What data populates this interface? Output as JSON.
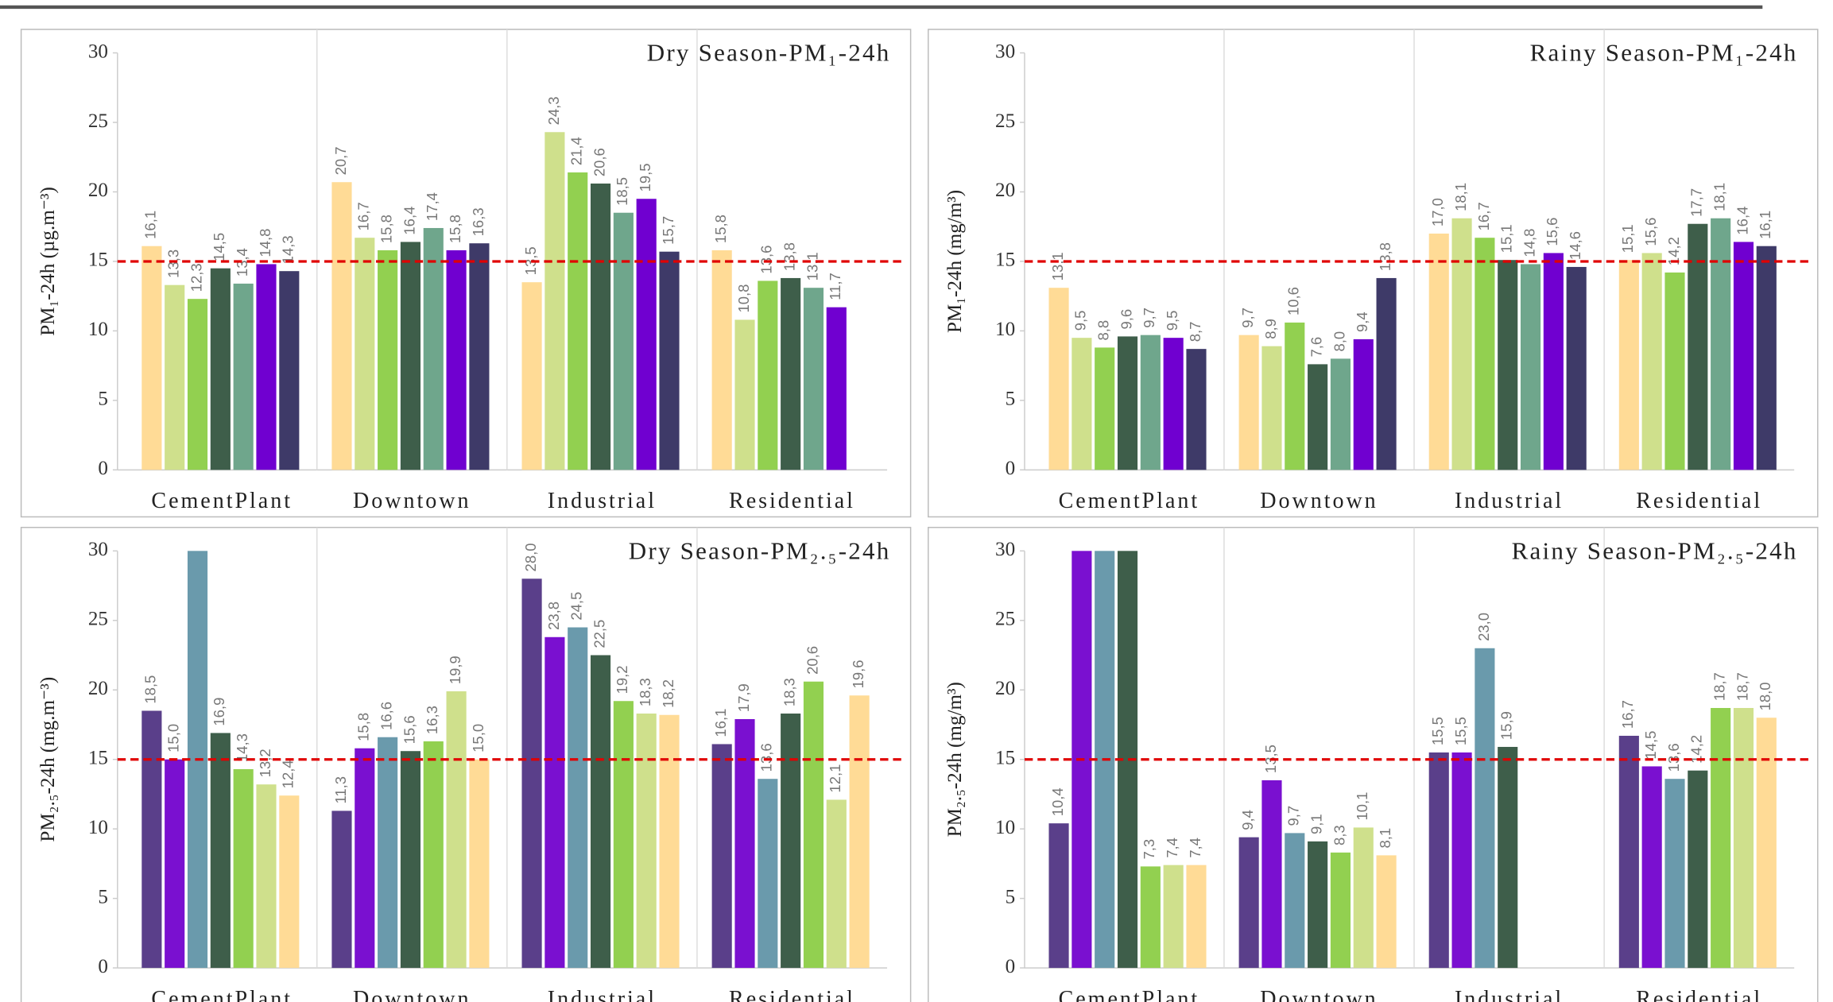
{
  "chart_data": [
    {
      "type": "bar",
      "title": "Dry Season-PM₁-24h",
      "y_label": "PM₁-24h (µg.m⁻³)",
      "categories": [
        "CementPlant",
        "Downtown",
        "Industrial",
        "Residential"
      ],
      "ylim": [
        0,
        30
      ],
      "yticks": [
        0,
        5,
        10,
        15,
        20,
        25,
        30
      ],
      "reference_line": 15,
      "reference_color": "#e00000",
      "series": [
        {
          "color": "#FFDB96",
          "values": [
            16.1,
            20.7,
            13.5,
            15.8
          ],
          "value_labels": [
            "16,1",
            "20,7",
            "13,5",
            "15,8"
          ]
        },
        {
          "color": "#CFE08C",
          "values": [
            13.3,
            16.7,
            24.3,
            10.8
          ],
          "value_labels": [
            "13,3",
            "16,7",
            "24,3",
            "10,8"
          ]
        },
        {
          "color": "#92D050",
          "values": [
            12.3,
            15.8,
            21.4,
            13.6
          ],
          "value_labels": [
            "12,3",
            "15,8",
            "21,4",
            "13,6"
          ]
        },
        {
          "color": "#3E5E4A",
          "values": [
            14.5,
            16.4,
            20.6,
            13.8
          ],
          "value_labels": [
            "14,5",
            "16,4",
            "20,6",
            "13,8"
          ]
        },
        {
          "color": "#6FA68C",
          "values": [
            13.4,
            17.4,
            18.5,
            13.1
          ],
          "value_labels": [
            "13,4",
            "17,4",
            "18,5",
            "13,1"
          ]
        },
        {
          "color": "#7000D0",
          "values": [
            14.8,
            15.8,
            19.5,
            11.7
          ],
          "value_labels": [
            "14,8",
            "15,8",
            "19,5",
            "11,7"
          ]
        },
        {
          "color": "#3E3A68",
          "values": [
            14.3,
            16.3,
            15.7,
            null
          ],
          "value_labels": [
            "14,3",
            "16,3",
            "15,7",
            null
          ]
        }
      ]
    },
    {
      "type": "bar",
      "title": "Rainy Season-PM₁-24h",
      "y_label": "PM₁-24h (mg/m³)",
      "categories": [
        "CementPlant",
        "Downtown",
        "Industrial",
        "Residential"
      ],
      "ylim": [
        0,
        30
      ],
      "yticks": [
        0,
        5,
        10,
        15,
        20,
        25,
        30
      ],
      "reference_line": 15,
      "reference_color": "#e00000",
      "series": [
        {
          "color": "#FFDB96",
          "values": [
            13.1,
            9.7,
            17.0,
            15.1
          ],
          "value_labels": [
            "13,1",
            "9,7",
            "17,0",
            "15,1"
          ]
        },
        {
          "color": "#CFE08C",
          "values": [
            9.5,
            8.9,
            18.1,
            15.6
          ],
          "value_labels": [
            "9,5",
            "8,9",
            "18,1",
            "15,6"
          ]
        },
        {
          "color": "#92D050",
          "values": [
            8.8,
            10.6,
            16.7,
            14.2
          ],
          "value_labels": [
            "8,8",
            "10,6",
            "16,7",
            "14,2"
          ]
        },
        {
          "color": "#3E5E4A",
          "values": [
            9.6,
            7.6,
            15.1,
            17.7
          ],
          "value_labels": [
            "9,6",
            "7,6",
            "15,1",
            "17,7"
          ]
        },
        {
          "color": "#6FA68C",
          "values": [
            9.7,
            8.0,
            14.8,
            18.1
          ],
          "value_labels": [
            "9,7",
            "8,0",
            "14,8",
            "18,1"
          ]
        },
        {
          "color": "#7000D0",
          "values": [
            9.5,
            9.4,
            15.6,
            16.4
          ],
          "value_labels": [
            "9,5",
            "9,4",
            "15,6",
            "16,4"
          ]
        },
        {
          "color": "#3E3A68",
          "values": [
            8.7,
            13.8,
            14.6,
            16.1
          ],
          "value_labels": [
            "8,7",
            "13,8",
            "14,6",
            "16,1"
          ]
        }
      ]
    },
    {
      "type": "bar",
      "title": "Dry Season-PM₂.₅-24h",
      "y_label": "PM₂.₅-24h (mg.m⁻³)",
      "categories": [
        "CementPlant",
        "Downtown",
        "Industrial",
        "Residential"
      ],
      "ylim": [
        0,
        30
      ],
      "yticks": [
        0,
        5,
        10,
        15,
        20,
        25,
        30
      ],
      "reference_line": 15,
      "reference_color": "#e00000",
      "series": [
        {
          "color": "#5A3F8A",
          "values": [
            18.5,
            11.3,
            28.0,
            16.1
          ],
          "value_labels": [
            "18,5",
            "11,3",
            "28,0",
            "16,1"
          ]
        },
        {
          "color": "#7A10D0",
          "values": [
            15.0,
            15.8,
            23.8,
            17.9
          ],
          "value_labels": [
            "15,0",
            "15,8",
            "23,8",
            "17,9"
          ]
        },
        {
          "color": "#6A9AAC",
          "values": [
            30,
            16.6,
            24.5,
            13.6
          ],
          "value_labels": [
            null,
            "16,6",
            "24,5",
            "13,6"
          ]
        },
        {
          "color": "#3E5E4A",
          "values": [
            16.9,
            15.6,
            22.5,
            18.3
          ],
          "value_labels": [
            "16,9",
            "15,6",
            "22,5",
            "18,3"
          ]
        },
        {
          "color": "#92D050",
          "values": [
            14.3,
            16.3,
            19.2,
            20.6
          ],
          "value_labels": [
            "14,3",
            "16,3",
            "19,2",
            "20,6"
          ]
        },
        {
          "color": "#CFE08C",
          "values": [
            13.2,
            19.9,
            18.3,
            12.1
          ],
          "value_labels": [
            "13,2",
            "19,9",
            "18,3",
            "12,1"
          ]
        },
        {
          "color": "#FFDB96",
          "values": [
            12.4,
            15.0,
            18.2,
            19.6
          ],
          "value_labels": [
            "12,4",
            "15,0",
            "18,2",
            "19,6"
          ]
        }
      ]
    },
    {
      "type": "bar",
      "title": "Rainy Season-PM₂.₅-24h",
      "y_label": "PM₂.₅-24h (mg/m³)",
      "categories": [
        "CementPlant",
        "Downtown",
        "Industrial",
        "Residential"
      ],
      "ylim": [
        0,
        30
      ],
      "yticks": [
        0,
        5,
        10,
        15,
        20,
        25,
        30
      ],
      "reference_line": 15,
      "reference_color": "#e00000",
      "series": [
        {
          "color": "#5A3F8A",
          "values": [
            10.4,
            9.4,
            15.5,
            16.7
          ],
          "value_labels": [
            "10,4",
            "9,4",
            "15,5",
            "16,7"
          ]
        },
        {
          "color": "#7A10D0",
          "values": [
            30,
            13.5,
            15.5,
            14.5
          ],
          "value_labels": [
            null,
            "13,5",
            "15,5",
            "14,5"
          ]
        },
        {
          "color": "#6A9AAC",
          "values": [
            30,
            9.7,
            23.0,
            13.6
          ],
          "value_labels": [
            null,
            "9,7",
            "23,0",
            "13,6"
          ]
        },
        {
          "color": "#3E5E4A",
          "values": [
            30,
            9.1,
            15.9,
            14.2
          ],
          "value_labels": [
            null,
            "9,1",
            "15,9",
            "14,2"
          ]
        },
        {
          "color": "#92D050",
          "values": [
            7.3,
            8.3,
            null,
            18.7
          ],
          "value_labels": [
            "7,3",
            "8,3",
            null,
            "18,7"
          ]
        },
        {
          "color": "#CFE08C",
          "values": [
            7.4,
            10.1,
            null,
            18.7
          ],
          "value_labels": [
            "7,4",
            "10,1",
            null,
            "18,7"
          ]
        },
        {
          "color": "#FFDB96",
          "values": [
            7.4,
            8.1,
            null,
            18.0
          ],
          "value_labels": [
            "7,4",
            "8,1",
            null,
            "18,0"
          ]
        }
      ]
    }
  ]
}
